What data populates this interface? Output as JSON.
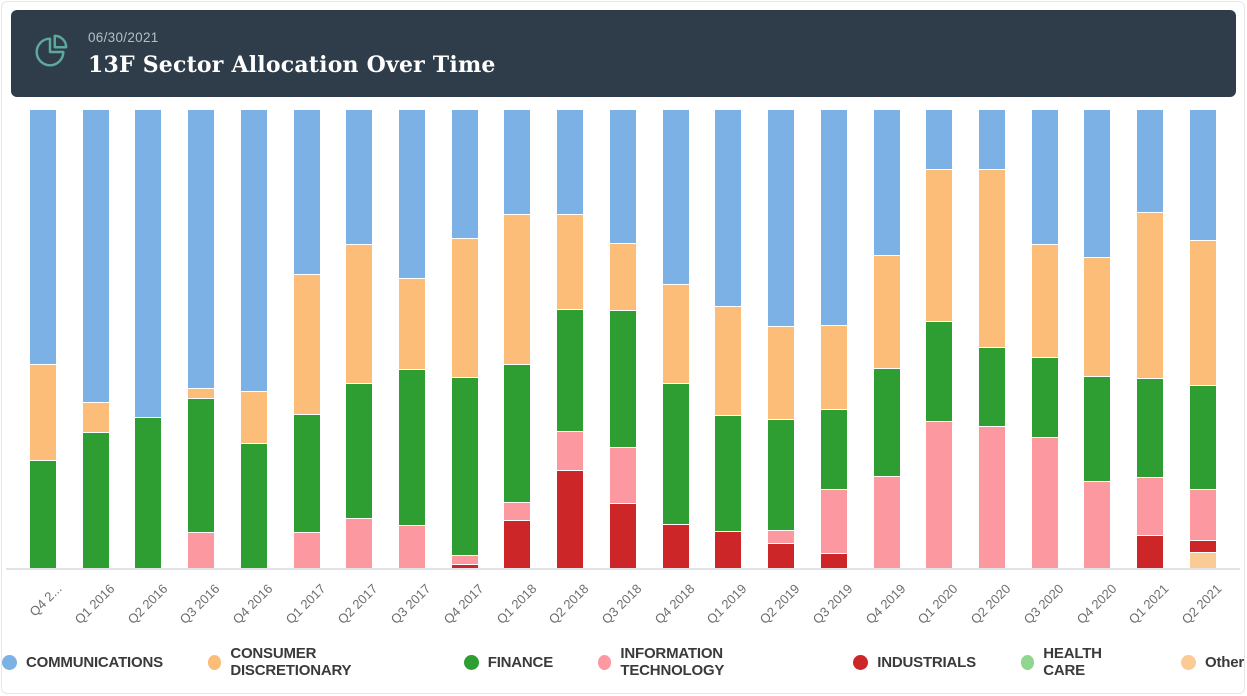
{
  "header": {
    "date": "06/30/2021",
    "title": "13F Sector Allocation Over Time",
    "background_color": "#2f3d4a",
    "date_color": "#b3bfc6",
    "title_color": "#ffffff",
    "icon": "pie-chart-icon",
    "icon_color": "#5ea89e"
  },
  "chart_data": {
    "type": "bar",
    "stacked": true,
    "unit": "percent-of-portfolio",
    "orientation": "vertical",
    "grid": false,
    "legend_position": "bottom",
    "axis_line_color": "#e2e3e8",
    "x_label_color": "#6d6d72",
    "categories": [
      "Q4 2...",
      "Q1 2016",
      "Q2 2016",
      "Q3 2016",
      "Q4 2016",
      "Q1 2017",
      "Q2 2017",
      "Q3 2017",
      "Q4 2017",
      "Q1 2018",
      "Q2 2018",
      "Q3 2018",
      "Q4 2018",
      "Q1 2019",
      "Q2 2019",
      "Q3 2019",
      "Q4 2019",
      "Q1 2020",
      "Q2 2020",
      "Q3 2020",
      "Q4 2020",
      "Q1 2021",
      "Q2 2021"
    ],
    "series": [
      {
        "name": "COMMUNICATIONS",
        "color": "#7cb1e5",
        "values": [
          55.5,
          63.7,
          67.0,
          60.7,
          61.3,
          35.9,
          29.3,
          36.7,
          28.0,
          22.8,
          22.8,
          29.1,
          38.0,
          42.7,
          47.2,
          47.0,
          31.7,
          12.8,
          12.8,
          29.3,
          32.0,
          22.2,
          28.3
        ]
      },
      {
        "name": "CONSUMER DISCRETIONARY",
        "color": "#fbbd78",
        "values": [
          21.0,
          6.7,
          0,
          2.2,
          11.5,
          30.4,
          30.2,
          19.8,
          30.4,
          32.6,
          20.7,
          14.6,
          21.5,
          23.9,
          20.2,
          18.2,
          24.6,
          33.3,
          38.9,
          24.6,
          26.1,
          36.3,
          31.8
        ]
      },
      {
        "name": "FINANCE",
        "color": "#2e9e32",
        "values": [
          23.5,
          29.6,
          33.0,
          29.3,
          27.2,
          25.9,
          29.6,
          34.2,
          38.7,
          30.2,
          26.5,
          29.8,
          30.9,
          25.4,
          24.2,
          17.6,
          23.7,
          21.8,
          17.2,
          17.6,
          22.8,
          21.7,
          22.6
        ]
      },
      {
        "name": "INFORMATION TECHNOLOGY",
        "color": "#fc99a0",
        "values": [
          0,
          0,
          0,
          7.8,
          0,
          7.8,
          10.9,
          9.3,
          2.0,
          4.0,
          8.5,
          12.4,
          0,
          0,
          3.0,
          13.9,
          20.0,
          32.1,
          31.1,
          28.5,
          19.1,
          12.6,
          11.1
        ]
      },
      {
        "name": "INDUSTRIALS",
        "color": "#cc2629",
        "values": [
          0,
          0,
          0,
          0,
          0,
          0,
          0,
          0,
          0.9,
          10.4,
          21.5,
          14.1,
          9.6,
          8.0,
          5.4,
          3.3,
          0,
          0,
          0,
          0,
          0,
          7.2,
          2.7
        ]
      },
      {
        "name": "HEALTH CARE",
        "color": "#8fd68e",
        "values": [
          0,
          0,
          0,
          0,
          0,
          0,
          0,
          0,
          0,
          0,
          0,
          0,
          0,
          0,
          0,
          0,
          0,
          0,
          0,
          0,
          0,
          0,
          0
        ]
      },
      {
        "name": "Other",
        "color": "#fbcb95",
        "values": [
          0,
          0,
          0,
          0,
          0,
          0,
          0,
          0,
          0,
          0,
          0,
          0,
          0,
          0,
          0,
          0,
          0,
          0,
          0,
          0,
          0,
          0,
          3.5
        ]
      }
    ]
  }
}
